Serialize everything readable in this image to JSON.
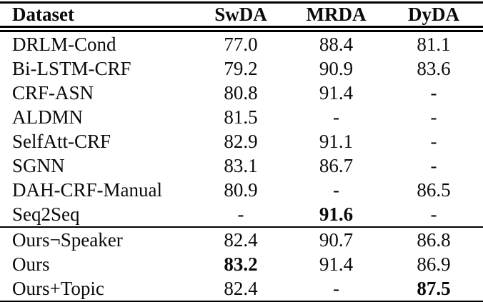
{
  "table": {
    "header": {
      "columns": [
        "Dataset",
        "SwDA",
        "MRDA",
        "DyDA"
      ]
    },
    "baseline_rows": [
      {
        "cells": [
          "DRLM-Cond",
          "77.0",
          "88.4",
          "81.1"
        ],
        "bold": [
          false,
          false,
          false,
          false
        ]
      },
      {
        "cells": [
          "Bi-LSTM-CRF",
          "79.2",
          "90.9",
          "83.6"
        ],
        "bold": [
          false,
          false,
          false,
          false
        ]
      },
      {
        "cells": [
          "CRF-ASN",
          "80.8",
          "91.4",
          "-"
        ],
        "bold": [
          false,
          false,
          false,
          false
        ]
      },
      {
        "cells": [
          "ALDMN",
          "81.5",
          "-",
          "-"
        ],
        "bold": [
          false,
          false,
          false,
          false
        ]
      },
      {
        "cells": [
          "SelfAtt-CRF",
          "82.9",
          "91.1",
          "-"
        ],
        "bold": [
          false,
          false,
          false,
          false
        ]
      },
      {
        "cells": [
          "SGNN",
          "83.1",
          "86.7",
          "-"
        ],
        "bold": [
          false,
          false,
          false,
          false
        ]
      },
      {
        "cells": [
          "DAH-CRF-Manual",
          "80.9",
          "-",
          "86.5"
        ],
        "bold": [
          false,
          false,
          false,
          false
        ]
      },
      {
        "cells": [
          "Seq2Seq",
          "-",
          "91.6",
          "-"
        ],
        "bold": [
          false,
          false,
          true,
          false
        ]
      }
    ],
    "ours_rows": [
      {
        "cells": [
          "Ours¬Speaker",
          "82.4",
          "90.7",
          "86.8"
        ],
        "bold": [
          false,
          false,
          false,
          false
        ]
      },
      {
        "cells": [
          "Ours",
          "83.2",
          "91.4",
          "86.9"
        ],
        "bold": [
          false,
          true,
          false,
          false
        ]
      },
      {
        "cells": [
          "Ours+Topic",
          "82.4",
          "-",
          "87.5"
        ],
        "bold": [
          false,
          false,
          false,
          true
        ]
      }
    ],
    "colors": {
      "text": "#0a0a0a",
      "rule": "#000000",
      "background": "#ffffff"
    }
  }
}
